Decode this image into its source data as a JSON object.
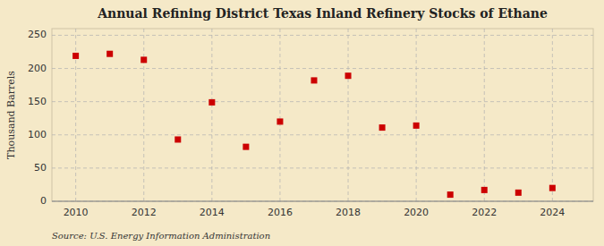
{
  "chart_data": {
    "type": "scatter",
    "title": "Annual Refining District Texas Inland Refinery Stocks of Ethane",
    "y_label": "Thousand Barrels",
    "annotations": [
      "Source: U.S. Energy Information Administration"
    ],
    "x": [
      2010,
      2011,
      2012,
      2013,
      2014,
      2015,
      2016,
      2017,
      2018,
      2019,
      2020,
      2021,
      2022,
      2023,
      2024
    ],
    "values": [
      219,
      222,
      213,
      93,
      149,
      82,
      120,
      182,
      189,
      111,
      114,
      10,
      17,
      13,
      20
    ],
    "xlim": [
      2009.3,
      2025.2
    ],
    "ylim": [
      0,
      260
    ],
    "xticks": [
      2010,
      2012,
      2014,
      2016,
      2018,
      2020,
      2022,
      2024
    ],
    "yticks": [
      0,
      50,
      100,
      150,
      200,
      250
    ],
    "color": "#cc0000",
    "marker": "square",
    "grid": true
  }
}
